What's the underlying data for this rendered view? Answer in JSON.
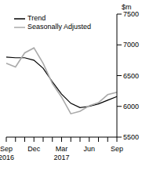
{
  "chart_data": {
    "type": "line",
    "y_label": "$m",
    "categories": [
      "Sep 2016",
      null,
      null,
      "Dec",
      null,
      null,
      "Mar 2017",
      null,
      null,
      "Jun",
      null,
      null,
      "Sep"
    ],
    "series": [
      {
        "name": "Trend",
        "color": "#000000",
        "values": [
          6800,
          6790,
          6790,
          6750,
          6620,
          6400,
          6200,
          6050,
          5980,
          6000,
          6040,
          6100,
          6160
        ]
      },
      {
        "name": "Seasonally Adjusted",
        "color": "#aaaaaa",
        "values": [
          6700,
          6640,
          6870,
          6950,
          6700,
          6370,
          6150,
          5880,
          5920,
          6010,
          6060,
          6190,
          6230
        ]
      }
    ],
    "ylim": [
      5500,
      7500
    ],
    "yticks": [
      5500,
      6000,
      6500,
      7000,
      7500
    ],
    "legend": "upper left",
    "grid": false
  }
}
